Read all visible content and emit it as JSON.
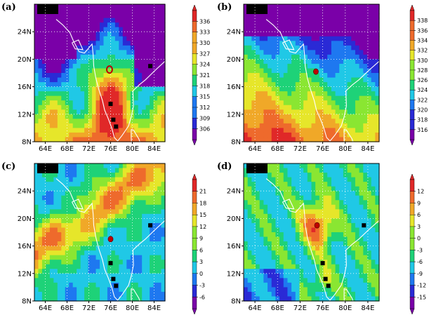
{
  "chart_data": [
    {
      "type": "heatmap",
      "panel_label": "(a)",
      "x_ticks": [
        "64E",
        "68E",
        "72E",
        "76E",
        "80E",
        "84E"
      ],
      "y_ticks": [
        "24N",
        "20N",
        "16N",
        "12N",
        "8N"
      ],
      "xlim": [
        62,
        86
      ],
      "ylim": [
        8,
        28
      ],
      "grid": true,
      "colorbar_ticks": [
        "336",
        "333",
        "330",
        "327",
        "324",
        "321",
        "318",
        "315",
        "312",
        "309",
        "306"
      ],
      "colorbar_range": [
        306,
        336
      ],
      "pattern": "warm_plume",
      "markers": [
        {
          "lon": 75.8,
          "lat": 18.5,
          "shape": "ring"
        },
        {
          "lon": 76.0,
          "lat": 13.5,
          "shape": "square"
        },
        {
          "lon": 76.5,
          "lat": 11.2,
          "shape": "square"
        },
        {
          "lon": 77.0,
          "lat": 10.2,
          "shape": "square"
        },
        {
          "lon": 83.3,
          "lat": 19.0,
          "shape": "square"
        }
      ]
    },
    {
      "type": "heatmap",
      "panel_label": "(b)",
      "x_ticks": [
        "64E",
        "68E",
        "72E",
        "76E",
        "80E",
        "84E"
      ],
      "y_ticks": [
        "24N",
        "20N",
        "16N",
        "12N",
        "8N"
      ],
      "xlim": [
        62,
        86
      ],
      "ylim": [
        8,
        28
      ],
      "grid": true,
      "colorbar_ticks": [
        "338",
        "336",
        "334",
        "332",
        "330",
        "328",
        "326",
        "324",
        "322",
        "320",
        "318",
        "316"
      ],
      "colorbar_range": [
        316,
        338
      ],
      "pattern": "south_north_gradient",
      "markers": [
        {
          "lon": 74.8,
          "lat": 18.2,
          "shape": "dot"
        }
      ]
    },
    {
      "type": "heatmap",
      "panel_label": "(c)",
      "x_ticks": [
        "64E",
        "68E",
        "72E",
        "76E",
        "80E",
        "84E"
      ],
      "y_ticks": [
        "24N",
        "20N",
        "16N",
        "12N",
        "8N"
      ],
      "xlim": [
        62,
        86
      ],
      "ylim": [
        8,
        28
      ],
      "grid": true,
      "colorbar_ticks": [
        "21",
        "18",
        "15",
        "12",
        "9",
        "6",
        "3",
        "0",
        "-3",
        "-6"
      ],
      "colorbar_range": [
        -6,
        21
      ],
      "pattern": "diagonal_band",
      "markers": [
        {
          "lon": 76.0,
          "lat": 17.0,
          "shape": "dot"
        },
        {
          "lon": 76.0,
          "lat": 13.5,
          "shape": "square"
        },
        {
          "lon": 76.5,
          "lat": 11.2,
          "shape": "square"
        },
        {
          "lon": 77.0,
          "lat": 10.2,
          "shape": "square"
        },
        {
          "lon": 83.3,
          "lat": 19.0,
          "shape": "square"
        }
      ]
    },
    {
      "type": "heatmap",
      "panel_label": "(d)",
      "x_ticks": [
        "64E",
        "68E",
        "72E",
        "76E",
        "80E",
        "84E"
      ],
      "y_ticks": [
        "24N",
        "20N",
        "16N",
        "12N",
        "8N"
      ],
      "xlim": [
        62,
        86
      ],
      "ylim": [
        8,
        28
      ],
      "grid": true,
      "colorbar_ticks": [
        "12",
        "9",
        "6",
        "3",
        "0",
        "-3",
        "-6",
        "-9",
        "-12",
        "-15"
      ],
      "colorbar_range": [
        -15,
        12
      ],
      "pattern": "central_blob",
      "markers": [
        {
          "lon": 75.0,
          "lat": 19.0,
          "shape": "dot"
        },
        {
          "lon": 76.0,
          "lat": 13.5,
          "shape": "square"
        },
        {
          "lon": 76.5,
          "lat": 11.2,
          "shape": "square"
        },
        {
          "lon": 77.0,
          "lat": 10.2,
          "shape": "square"
        },
        {
          "lon": 83.3,
          "lat": 19.0,
          "shape": "square"
        }
      ]
    }
  ],
  "palette": [
    "#7a00a8",
    "#2a2ad6",
    "#1e78f0",
    "#20c8e6",
    "#1ed278",
    "#8ae632",
    "#e6e62a",
    "#f0a828",
    "#ee6a2c",
    "#e02828"
  ],
  "coast_color": "#ffffff",
  "marker_color": "#000000",
  "ring_color": "#c00000"
}
